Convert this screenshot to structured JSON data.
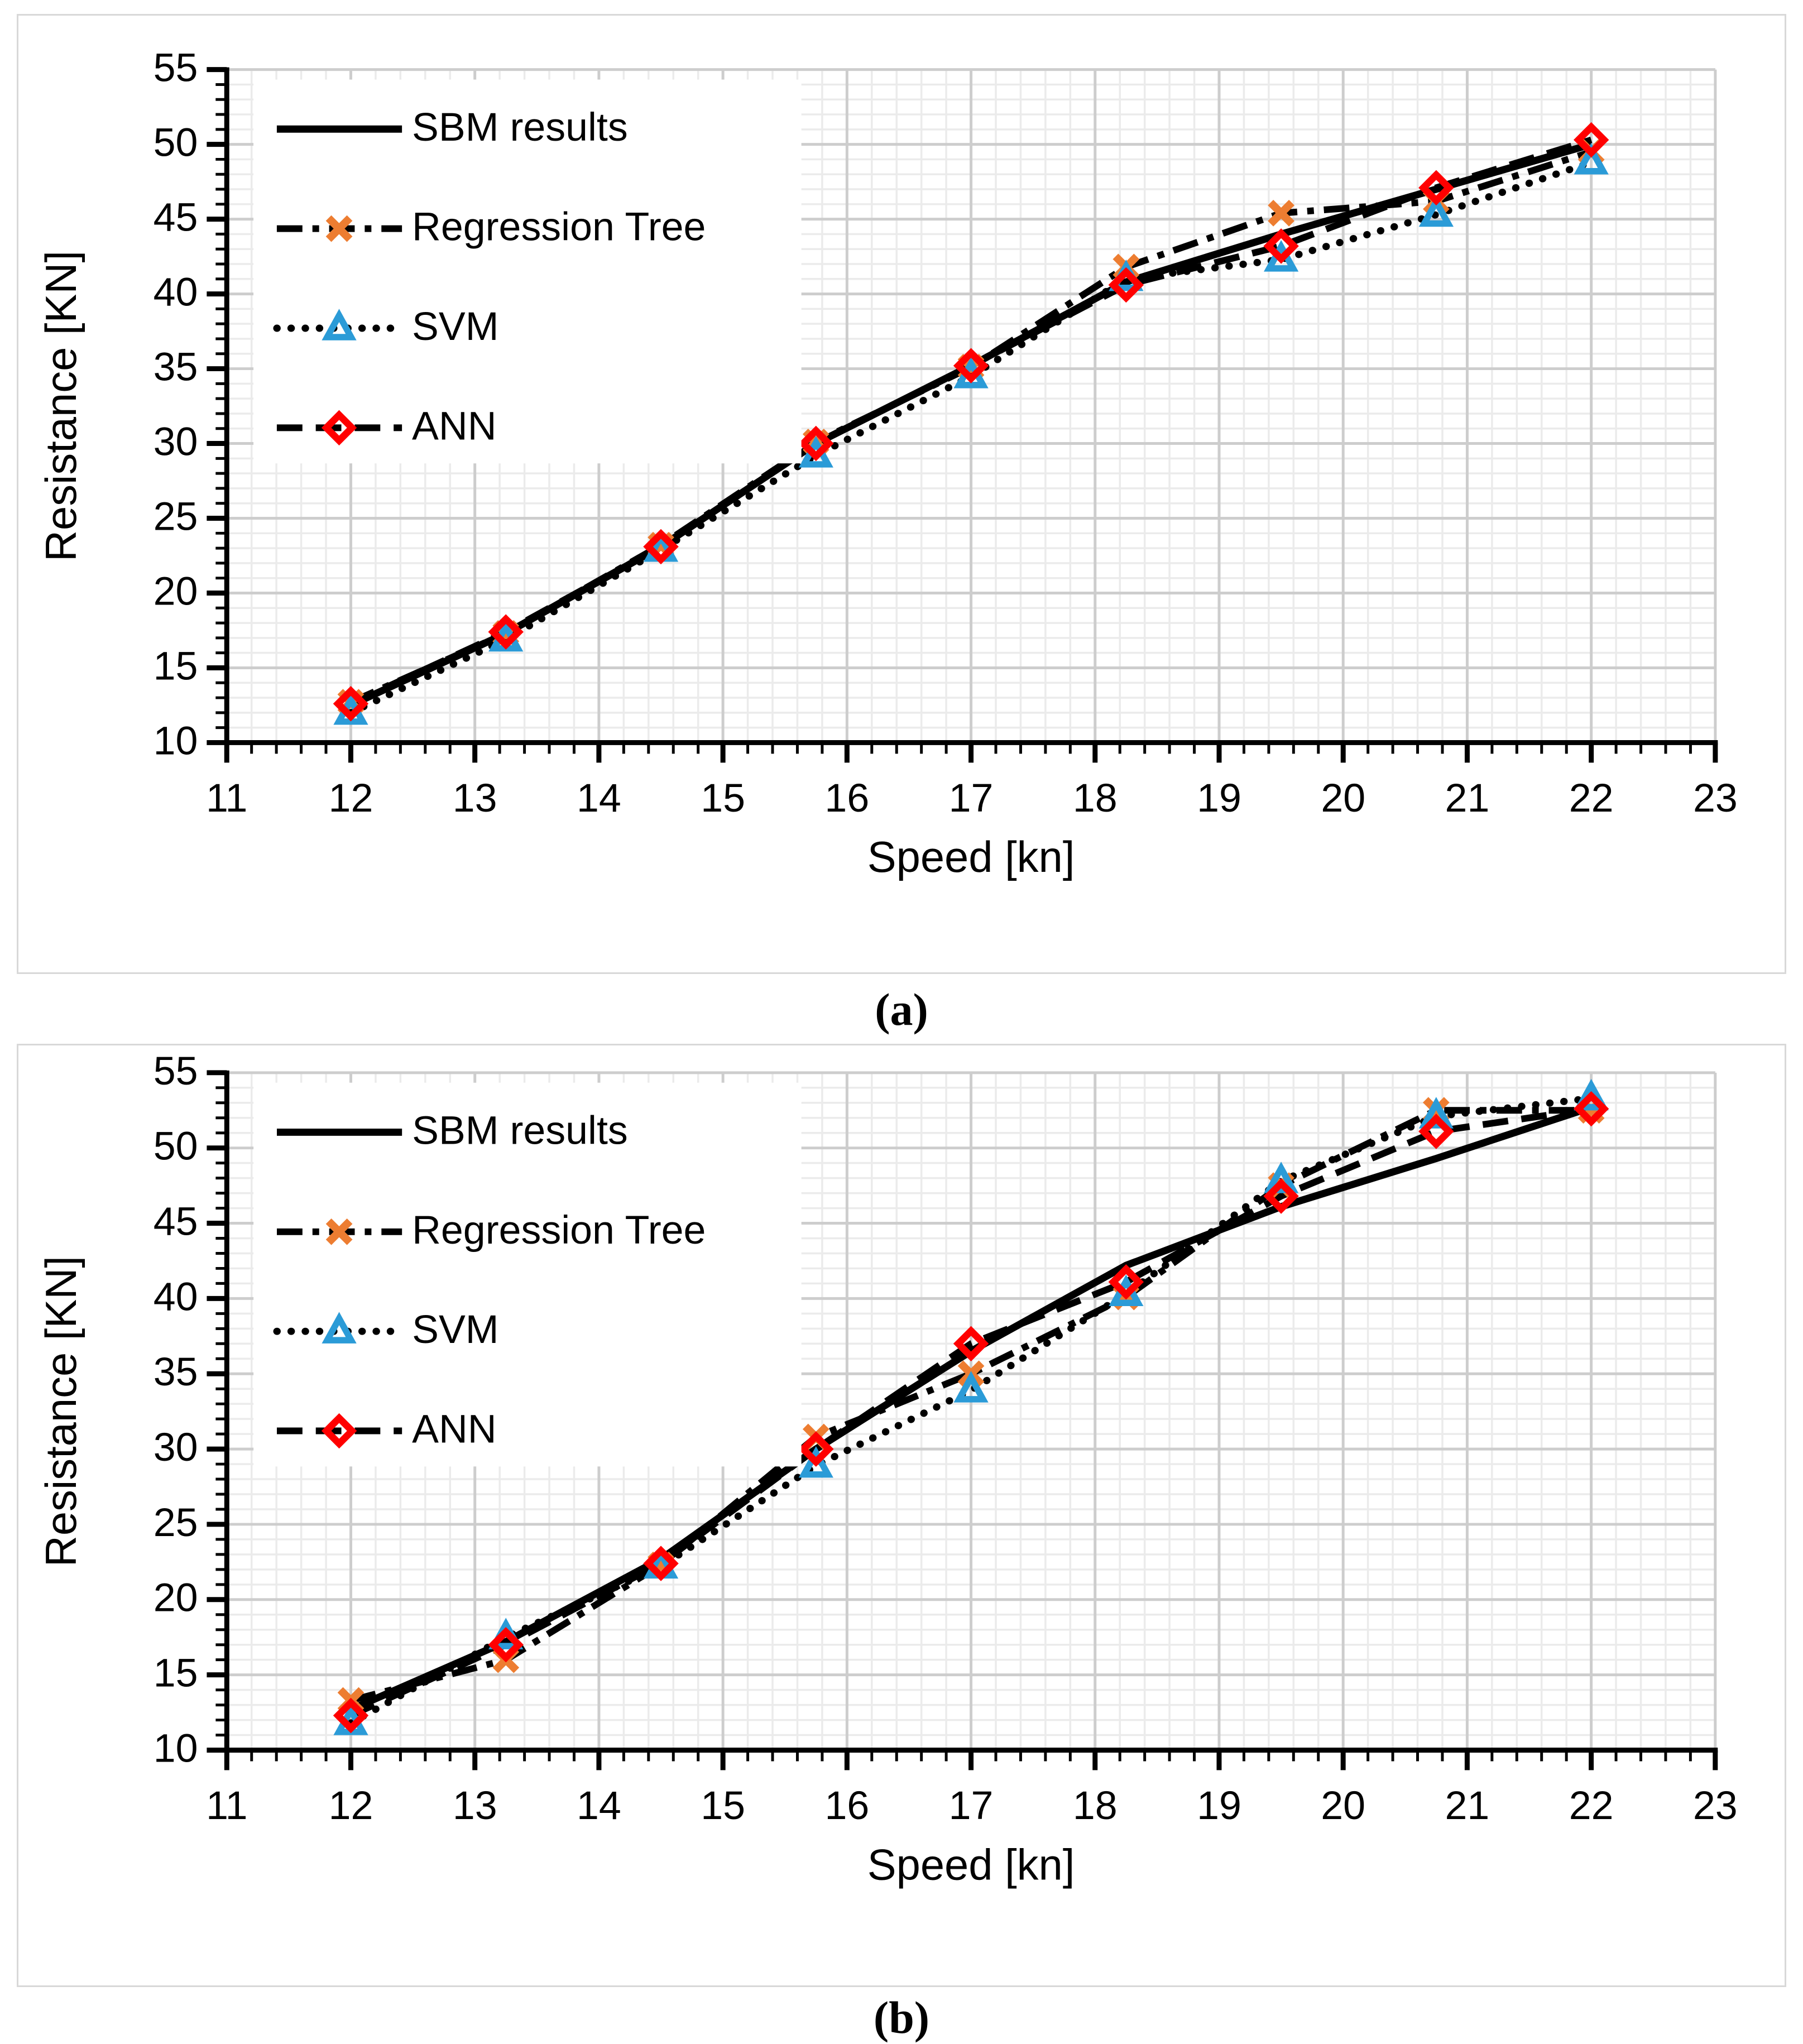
{
  "page": {
    "background": "#ffffff",
    "panel_border": "#d8d8d8"
  },
  "colors": {
    "line_black": "#000000",
    "regression_tree_marker": "#ED7D31",
    "svm_marker": "#2B9BD7",
    "ann_marker": "#FF0000",
    "grid_minor": "#ebebeb",
    "grid_major": "#cdcdcd",
    "tick_text": "#000000"
  },
  "legend": {
    "items": [
      "SBM results",
      "Regression Tree",
      "SVM",
      "ANN"
    ]
  },
  "chart_data": [
    {
      "type": "line",
      "caption": "(a)",
      "xlabel": "Speed [kn]",
      "ylabel": "Resistance [KN]",
      "xlim": [
        11,
        23
      ],
      "ylim": [
        10,
        55
      ],
      "x_ticks": [
        11,
        12,
        13,
        14,
        15,
        16,
        17,
        18,
        19,
        20,
        21,
        22,
        23
      ],
      "y_ticks": [
        10,
        15,
        20,
        25,
        30,
        35,
        40,
        45,
        50,
        55
      ],
      "x_major_step": 1,
      "x_minor_step": 0.2,
      "y_major_step": 5,
      "y_minor_step": 1,
      "grid": true,
      "legend_position": "upper-left-inside",
      "x": [
        12,
        13.25,
        14.5,
        15.75,
        17,
        18.25,
        19.5,
        20.75,
        22
      ],
      "series": [
        {
          "name": "SBM results",
          "line": "solid",
          "marker": "none",
          "line_color": "#000000",
          "marker_color": "#000000",
          "values": [
            12.5,
            17.3,
            23.1,
            30.0,
            35.2,
            40.8,
            44.0,
            47.0,
            50.0
          ]
        },
        {
          "name": "Regression Tree",
          "line": "dash-dot",
          "marker": "x",
          "line_color": "#000000",
          "marker_color": "#ED7D31",
          "values": [
            12.7,
            17.3,
            23.2,
            30.1,
            35.1,
            41.8,
            45.4,
            46.2,
            49.5
          ]
        },
        {
          "name": "SVM",
          "line": "dotted",
          "marker": "triangle",
          "line_color": "#000000",
          "marker_color": "#2B9BD7",
          "values": [
            12.0,
            16.9,
            22.9,
            29.2,
            34.5,
            41.0,
            42.3,
            45.3,
            48.8
          ]
        },
        {
          "name": "ANN",
          "line": "dashed",
          "marker": "diamond",
          "line_color": "#000000",
          "marker_color": "#FF0000",
          "values": [
            12.6,
            17.4,
            23.1,
            30.0,
            35.2,
            40.6,
            43.2,
            47.1,
            50.3
          ]
        }
      ]
    },
    {
      "type": "line",
      "caption": "(b)",
      "xlabel": "Speed [kn]",
      "ylabel": "Resistance [KN]",
      "xlim": [
        11,
        23
      ],
      "ylim": [
        10,
        55
      ],
      "x_ticks": [
        11,
        12,
        13,
        14,
        15,
        16,
        17,
        18,
        19,
        20,
        21,
        22,
        23
      ],
      "y_ticks": [
        10,
        15,
        20,
        25,
        30,
        35,
        40,
        45,
        50,
        55
      ],
      "x_major_step": 1,
      "x_minor_step": 0.2,
      "y_major_step": 5,
      "y_minor_step": 1,
      "grid": true,
      "legend_position": "upper-left-inside",
      "x": [
        12,
        13.25,
        14.5,
        15.75,
        17,
        18.25,
        19.5,
        20.75,
        22
      ],
      "series": [
        {
          "name": "SBM results",
          "line": "solid",
          "marker": "none",
          "line_color": "#000000",
          "marker_color": "#000000",
          "values": [
            12.7,
            17.2,
            22.7,
            30.0,
            36.5,
            42.2,
            46.1,
            49.3,
            52.7
          ]
        },
        {
          "name": "Regression Tree",
          "line": "dash-dot",
          "marker": "x",
          "line_color": "#000000",
          "marker_color": "#ED7D31",
          "values": [
            13.3,
            16.0,
            22.3,
            30.8,
            35.0,
            40.1,
            47.5,
            52.5,
            52.5
          ]
        },
        {
          "name": "SVM",
          "line": "dotted",
          "marker": "triangle",
          "line_color": "#000000",
          "marker_color": "#2B9BD7",
          "values": [
            11.8,
            17.5,
            22.2,
            28.9,
            33.9,
            40.3,
            47.8,
            52.1,
            53.3
          ]
        },
        {
          "name": "ANN",
          "line": "dashed",
          "marker": "diamond",
          "line_color": "#000000",
          "marker_color": "#FF0000",
          "values": [
            12.3,
            17.0,
            22.4,
            30.0,
            37.0,
            41.1,
            46.8,
            51.1,
            52.6
          ]
        }
      ]
    }
  ]
}
